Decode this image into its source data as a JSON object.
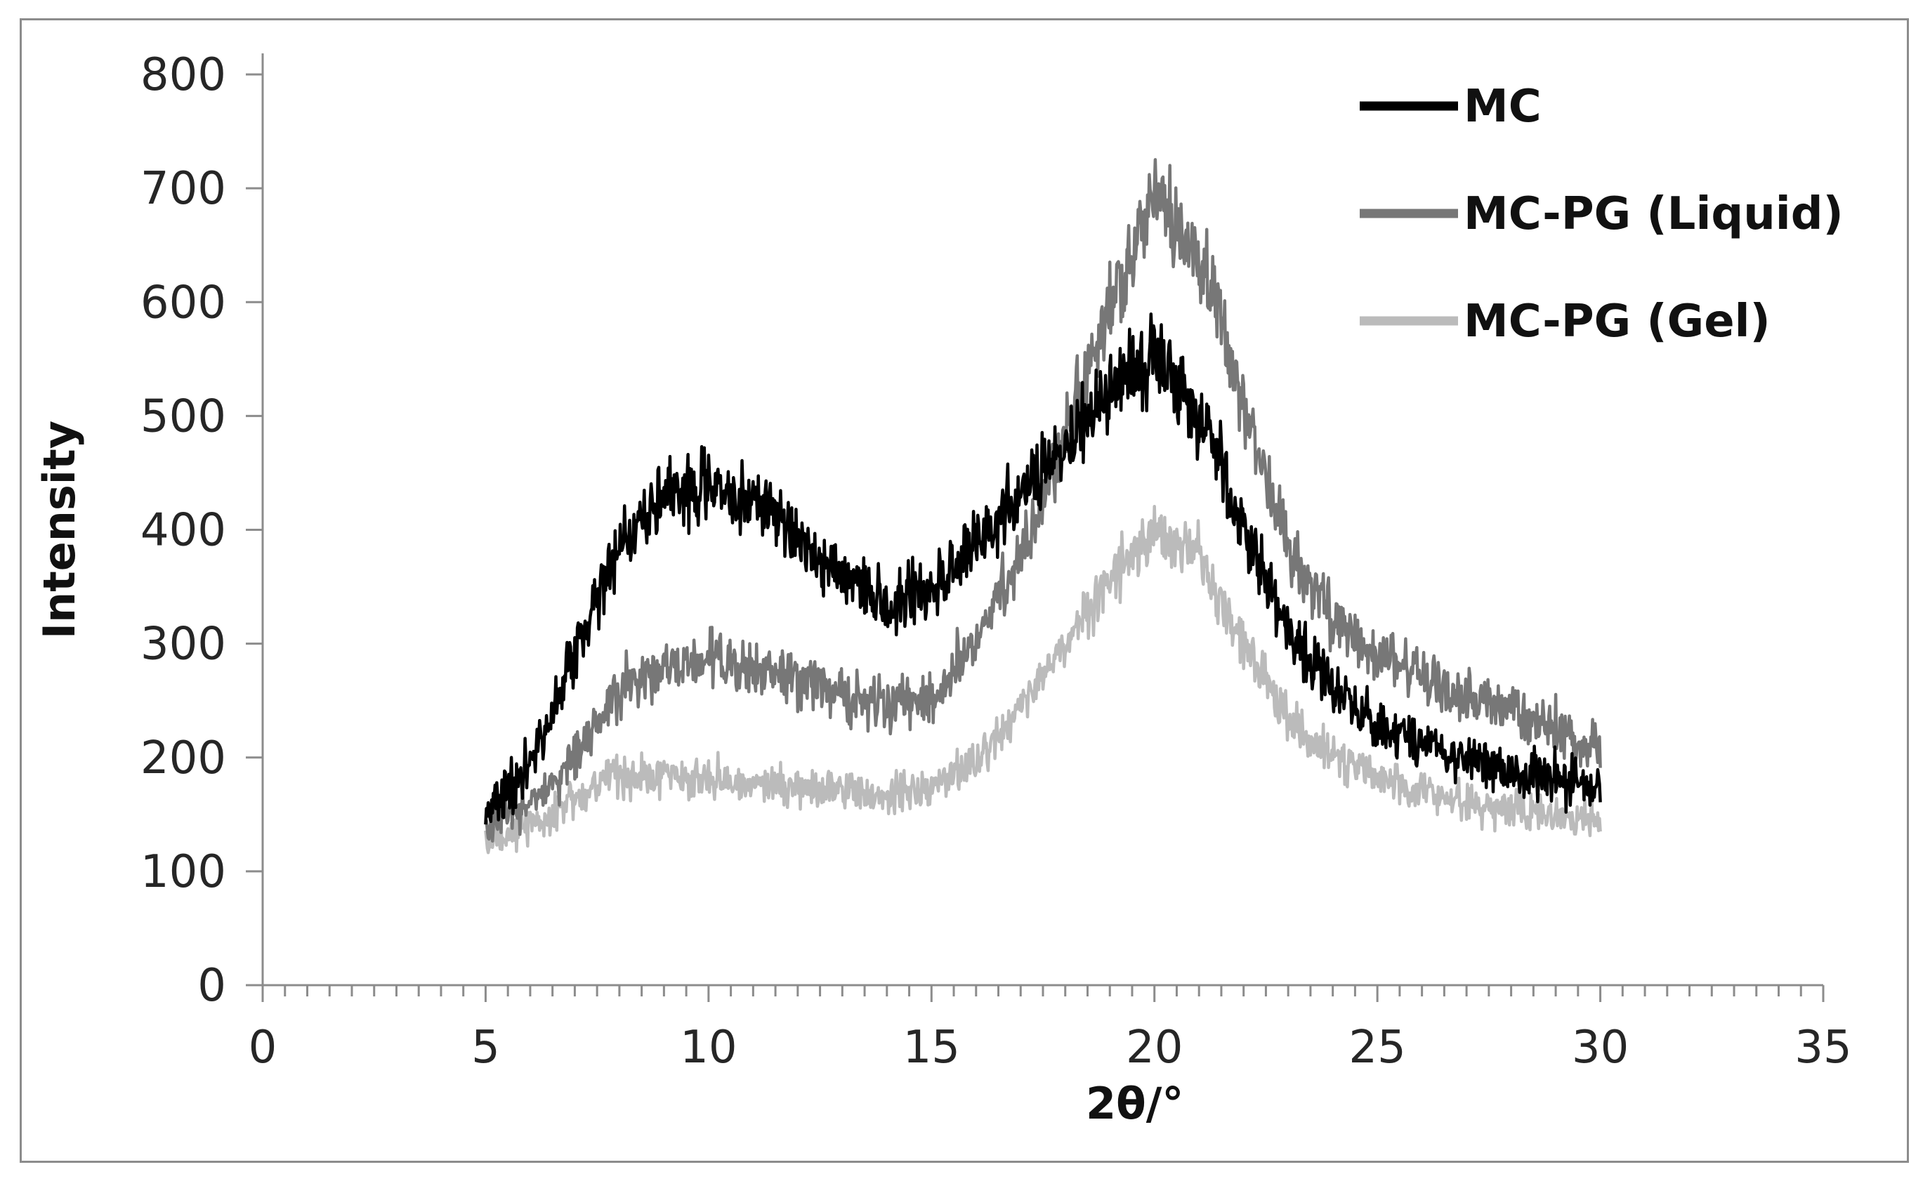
{
  "chart_data": {
    "type": "line",
    "title": "",
    "xlabel": "2θ/°",
    "ylabel": "Intensity",
    "xlim": [
      0,
      35
    ],
    "ylim": [
      0,
      800
    ],
    "xticks": [
      0,
      5,
      10,
      15,
      20,
      25,
      30,
      35
    ],
    "yticks": [
      0,
      100,
      200,
      300,
      400,
      500,
      600,
      700,
      800
    ],
    "x_minor_step": 0.5,
    "grid": false,
    "legend_position": "top-right",
    "series": [
      {
        "name": "MC",
        "color": "#000000",
        "noise": 26,
        "x": [
          5,
          6,
          7,
          8,
          9,
          10,
          11,
          12,
          13,
          14,
          15,
          16,
          17,
          18,
          19,
          20,
          21,
          22,
          23,
          24,
          25,
          26,
          27,
          28,
          29,
          30
        ],
        "y": [
          150,
          195,
          290,
          390,
          430,
          440,
          425,
          390,
          355,
          335,
          350,
          390,
          430,
          470,
          525,
          550,
          500,
          400,
          310,
          260,
          230,
          210,
          200,
          190,
          180,
          175
        ]
      },
      {
        "name": "MC-PG (Liquid)",
        "color": "#777777",
        "noise": 26,
        "x": [
          5,
          6,
          7,
          8,
          9,
          10,
          11,
          12,
          13,
          14,
          15,
          16,
          17,
          18,
          19,
          20,
          21,
          22,
          23,
          24,
          25,
          26,
          27,
          28,
          29,
          30
        ],
        "y": [
          140,
          160,
          200,
          260,
          280,
          285,
          280,
          270,
          255,
          245,
          255,
          300,
          380,
          480,
          600,
          690,
          640,
          510,
          380,
          320,
          290,
          270,
          255,
          240,
          225,
          205
        ]
      },
      {
        "name": "MC-PG (Gel)",
        "color": "#bbbbbb",
        "noise": 22,
        "x": [
          5,
          6,
          7,
          8,
          9,
          10,
          11,
          12,
          13,
          14,
          15,
          16,
          17,
          18,
          19,
          20,
          21,
          22,
          23,
          24,
          25,
          26,
          27,
          28,
          29,
          30
        ],
        "y": [
          125,
          140,
          165,
          185,
          185,
          180,
          178,
          175,
          170,
          165,
          175,
          195,
          245,
          300,
          360,
          400,
          375,
          300,
          235,
          200,
          180,
          170,
          160,
          155,
          150,
          145
        ]
      }
    ]
  }
}
